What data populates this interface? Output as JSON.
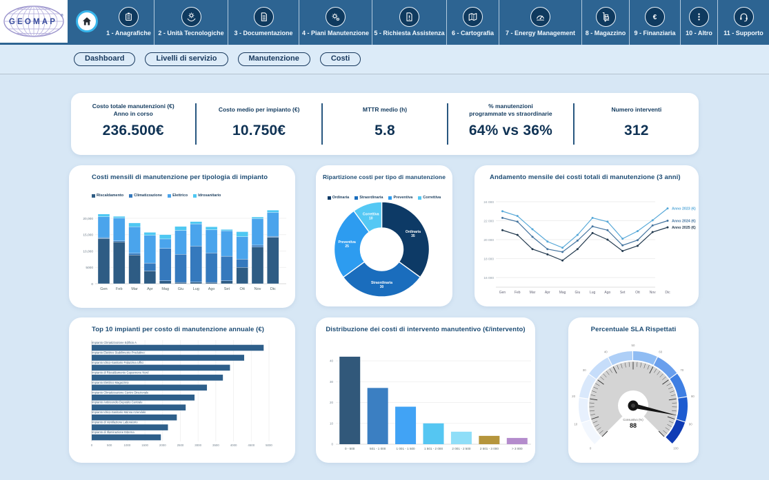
{
  "header": {
    "logo_text": "GEOMAP",
    "logo_mark": "®",
    "home_icon": "home-icon",
    "nav_items": [
      {
        "label": "1 - Anagrafiche",
        "icon": "card-index",
        "width": 74
      },
      {
        "label": "2 - Unità Tecnologiche",
        "icon": "gear-hands",
        "width": 107
      },
      {
        "label": "3 - Documentazione",
        "icon": "document",
        "width": 103
      },
      {
        "label": "4 - Piani Manutenzione",
        "icon": "gears",
        "width": 106
      },
      {
        "label": "5 - Richiesta Assistenza",
        "icon": "document-alert",
        "width": 108
      },
      {
        "label": "6 - Cartografia",
        "icon": "map",
        "width": 76
      },
      {
        "label": "7 - Energy Management",
        "icon": "gauge",
        "width": 120
      },
      {
        "label": "8 - Magazzino",
        "icon": "hand-truck",
        "width": 69
      },
      {
        "label": "9 - Finanziaria",
        "icon": "euro",
        "width": 74
      },
      {
        "label": "10 - Altro",
        "icon": "dots",
        "width": 54
      },
      {
        "label": "11 - Supporto",
        "icon": "headset",
        "width": 74
      }
    ]
  },
  "tabs": [
    {
      "label": "Dashboard"
    },
    {
      "label": "Livelli di servizio"
    },
    {
      "label": "Manutenzione"
    },
    {
      "label": "Costi"
    }
  ],
  "kpis": [
    {
      "label": "Costo totale manutenzioni (€)\nAnno in corso",
      "value": "236.500€"
    },
    {
      "label": "Costo medio per impianto (€)",
      "value": "10.750€"
    },
    {
      "label": "MTTR medio (h)",
      "value": "5.8"
    },
    {
      "label": "% manutenzioni\nprogrammate vs straordinarie",
      "value": "64% vs 36%"
    },
    {
      "label": "Numero interventi",
      "value": "312"
    }
  ],
  "colors": {
    "topbar": "#2d6492",
    "nav_icon_bg": "#0f3a5f",
    "page_bg": "#d7e7f5",
    "accent_navy": "#16375c",
    "panel_title": "#1d4c74"
  },
  "chart_data": [
    {
      "id": "p1",
      "type": "stacked-bar",
      "title": "Costi mensili di manutenzione per tipologia di impianto",
      "categories": [
        "Gen",
        "Feb",
        "Mar",
        "Apr",
        "Mag",
        "Giu",
        "Lug",
        "Ago",
        "Set",
        "Ott",
        "Nov",
        "Dic"
      ],
      "series": [
        {
          "name": "Riscaldamento",
          "color": "#2e5c84",
          "values": [
            13800,
            12800,
            8800,
            3900,
            900,
            400,
            500,
            400,
            900,
            5000,
            11200,
            14200
          ]
        },
        {
          "name": "Climatizzazione",
          "color": "#3579bd",
          "values": [
            300,
            300,
            500,
            2400,
            9900,
            8600,
            11000,
            9000,
            7500,
            2500,
            600,
            300
          ]
        },
        {
          "name": "Elettrico",
          "color": "#4aa4ec",
          "values": [
            6400,
            7000,
            8100,
            8500,
            2900,
            7300,
            6800,
            7100,
            7800,
            6900,
            8100,
            7300
          ]
        },
        {
          "name": "Idrosanitario",
          "color": "#4fc8f2",
          "values": [
            800,
            500,
            1200,
            900,
            1300,
            1200,
            700,
            900,
            400,
            1500,
            500,
            700
          ]
        }
      ],
      "yticks": [
        {
          "v": 0,
          "label": "0"
        },
        {
          "v": 5000,
          "label": "5000"
        },
        {
          "v": 10000,
          "label": "10,000"
        },
        {
          "v": 15000,
          "label": "15,000"
        },
        {
          "v": 20000,
          "label": "20,000"
        }
      ],
      "ymax": 24200,
      "grid": true,
      "legend_position": "top-left"
    },
    {
      "id": "p2",
      "type": "donut",
      "title": "Ripartizione costi per tipo di manutenzione",
      "slices": [
        {
          "name": "Ordinaria",
          "value": 35,
          "color": "#0d3a66"
        },
        {
          "name": "Straordinaria",
          "value": 30,
          "color": "#1a6dbd"
        },
        {
          "name": "Preventiva",
          "value": 25,
          "color": "#2d9cf0"
        },
        {
          "name": "Correttiva",
          "value": 10,
          "color": "#54c8f4"
        }
      ],
      "legend_position": "top-center"
    },
    {
      "id": "p3",
      "type": "line",
      "title": "Andamento mensile dei costi totali di manutenzione (3 anni)",
      "categories": [
        "Gen",
        "Feb",
        "Mar",
        "Apr",
        "Mag",
        "Giu",
        "Lug",
        "Ago",
        "Set",
        "Ott",
        "Nov",
        "Dic"
      ],
      "series": [
        {
          "name": "Anno 2023 (€)",
          "color": "#56a8d8",
          "values": [
            23000,
            22500,
            21100,
            19800,
            19150,
            20500,
            22300,
            21900,
            20100,
            20900,
            22050,
            23300
          ]
        },
        {
          "name": "Anno 2024 (€)",
          "color": "#44749f",
          "values": [
            22300,
            21900,
            20300,
            19000,
            18700,
            19900,
            21400,
            21000,
            19400,
            19950,
            21500,
            22000
          ]
        },
        {
          "name": "Anno 2025 (€)",
          "color": "#22394e",
          "values": [
            21000,
            20500,
            19000,
            18450,
            17800,
            19000,
            20700,
            20000,
            18800,
            19350,
            20800,
            21300
          ]
        }
      ],
      "yticks": [
        {
          "v": 16000,
          "label": "16 000"
        },
        {
          "v": 18000,
          "label": "18 000"
        },
        {
          "v": 20000,
          "label": "20 000"
        },
        {
          "v": 22000,
          "label": "22 000"
        },
        {
          "v": 24000,
          "label": "24 000"
        }
      ],
      "ymin": 16000,
      "ymax": 24000,
      "grid": true,
      "legend_position": "line-end"
    },
    {
      "id": "p4",
      "type": "hbar",
      "title": "Top 10 impianti per costo di manutenzione annuale (€)",
      "color": "#2e5f8a",
      "items": [
        {
          "label": "Impianto Climatizzazione Edificio A",
          "value": 4850
        },
        {
          "label": "Impianto Elettrico Stabilimento Produttivo",
          "value": 4300
        },
        {
          "label": "Impianto Idrico-Sanitario Palazzina Uffici",
          "value": 3900
        },
        {
          "label": "Impianto di Riscaldamento Capannone Nord",
          "value": 3700
        },
        {
          "label": "Impianto Elettrico Magazzino",
          "value": 3250
        },
        {
          "label": "Impianto Climatizzazione Centro Direzionale",
          "value": 2900
        },
        {
          "label": "Impianto Antincendio Deposito Centrale",
          "value": 2650
        },
        {
          "label": "Impianto Idrico-Sanitario Mensa Aziendale",
          "value": 2400
        },
        {
          "label": "Impianto di Ventilazione Laboratorio",
          "value": 2150
        },
        {
          "label": "Impianto di Illuminazione Esterna",
          "value": 1950
        }
      ],
      "xmax": 5000,
      "xtick_step": 500,
      "grid": true
    },
    {
      "id": "p5",
      "type": "bar",
      "title": "Distribuzione dei costi di intervento manutentivo (€/intervento)",
      "categories": [
        "0 - 500",
        "501 - 1 000",
        "1 001 - 1 500",
        "1 501 - 2 000",
        "2 001 - 2 500",
        "2 501 - 3 000",
        "> 3 000"
      ],
      "values": [
        42,
        27,
        18,
        10,
        6,
        4,
        3
      ],
      "colors": [
        "#31587a",
        "#3b7fc2",
        "#41a3f5",
        "#55c6f2",
        "#8fdef8",
        "#b5953c",
        "#b48ccc"
      ],
      "yticks": [
        0,
        10,
        20,
        30,
        40
      ],
      "ymax": 51,
      "grid": true
    },
    {
      "id": "p6",
      "type": "gauge",
      "title": "Percentuale SLA Rispettati",
      "value": 88,
      "min": 0,
      "max": 100,
      "caption": "Consuntivo (%)",
      "tick_labels": [
        0,
        10,
        20,
        30,
        40,
        50,
        60,
        70,
        80,
        90,
        100
      ],
      "ring_colors": [
        "#f2f7fe",
        "#e7f0fd",
        "#d9e8fb",
        "#c6ddfa",
        "#aecff7",
        "#8fbcf3",
        "#699fed",
        "#3f7fe3",
        "#1e5cd0",
        "#0f3bb5"
      ],
      "needle_color": "#141414",
      "dial_color": "#d4d4d4"
    }
  ]
}
